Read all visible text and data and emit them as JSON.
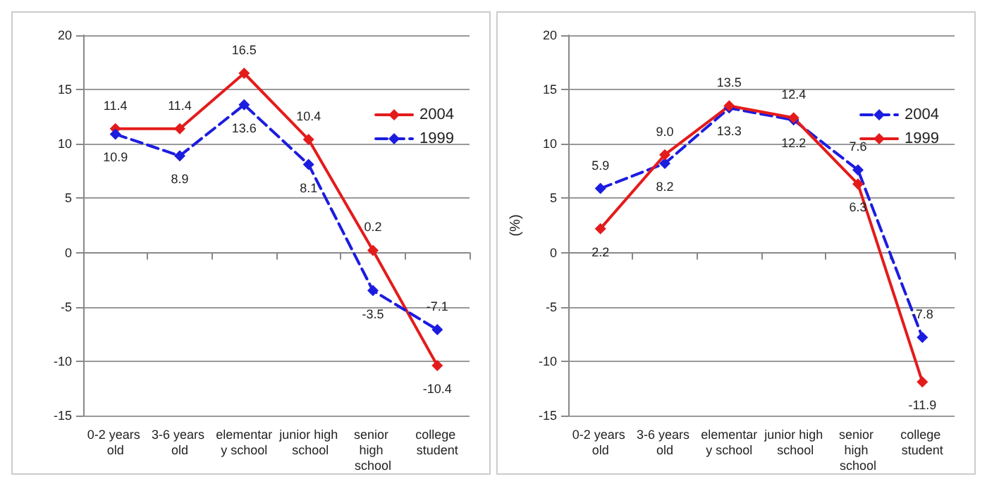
{
  "chart_data": [
    {
      "type": "line",
      "categories": [
        "0-2 years old",
        "3-6 years old",
        "elementary school",
        "junior high school",
        "senior high school",
        "college student"
      ],
      "series": [
        {
          "name": "2004",
          "color": "#e41b1b",
          "line_style": "solid",
          "values": [
            11.4,
            11.4,
            16.5,
            10.4,
            0.2,
            -10.4
          ],
          "value_labels": [
            "11.4",
            "11.4",
            "16.5",
            "10.4",
            "0.2",
            "-10.4"
          ]
        },
        {
          "name": "1999",
          "color": "#1c1ce0",
          "line_style": "dashed",
          "values": [
            10.9,
            8.9,
            13.6,
            8.1,
            -3.5,
            -7.1
          ],
          "value_labels": [
            "10.9",
            "8.9",
            "13.6",
            "8.1",
            "-3.5",
            "-7.1"
          ]
        }
      ],
      "ylim": [
        -15,
        20
      ],
      "yticks": [
        -15,
        -10,
        -5,
        0,
        5,
        10,
        15,
        20
      ],
      "grid": "y",
      "legend": "top right",
      "marker": "diamond"
    },
    {
      "type": "line",
      "categories": [
        "0-2 years old",
        "3-6 years old",
        "elementary school",
        "junior high school",
        "senior high school",
        "college student"
      ],
      "ylabel": "(%)",
      "series": [
        {
          "name": "2004",
          "color": "#1c1ce0",
          "line_style": "dashed",
          "values": [
            5.9,
            8.2,
            13.3,
            12.2,
            7.6,
            -7.8
          ],
          "value_labels": [
            "5.9",
            "8.2",
            "13.3",
            "12.2",
            "7.6",
            "-7.8"
          ]
        },
        {
          "name": "1999",
          "color": "#e41b1b",
          "line_style": "solid",
          "values": [
            2.2,
            9.0,
            13.5,
            12.4,
            6.3,
            -11.9
          ],
          "value_labels": [
            "2.2",
            "9.0",
            "13.5",
            "12.4",
            "6.3",
            "-11.9"
          ]
        }
      ],
      "ylim": [
        -15,
        20
      ],
      "yticks": [
        -15,
        -10,
        -5,
        0,
        5,
        10,
        15,
        20
      ],
      "grid": "y",
      "legend": "top right",
      "marker": "diamond"
    }
  ]
}
